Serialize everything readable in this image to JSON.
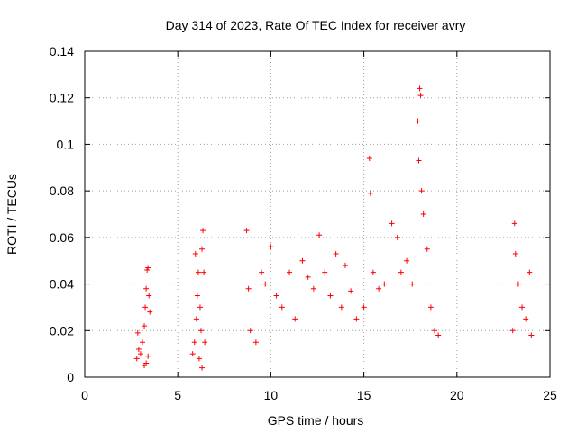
{
  "chart_data": {
    "type": "scatter",
    "title": "Day 314 of 2023, Rate Of TEC Index for receiver avry",
    "xlabel": "GPS time / hours",
    "ylabel": "ROTI / TECUs",
    "xlim": [
      0,
      25
    ],
    "ylim": [
      0,
      0.14
    ],
    "xticks": [
      0,
      5,
      10,
      15,
      20,
      25
    ],
    "yticks": [
      0,
      0.02,
      0.04,
      0.06,
      0.08,
      0.1,
      0.12,
      0.14
    ],
    "xtick_labels": [
      "0",
      "5",
      "10",
      "15",
      "20",
      "25"
    ],
    "ytick_labels": [
      "0",
      "0.02",
      "0.04",
      "0.06",
      "0.08",
      "0.1",
      "0.12",
      "0.14"
    ],
    "grid": true,
    "marker": "+",
    "color": "#ff0000",
    "series": [
      {
        "points": [
          [
            2.8,
            0.008
          ],
          [
            2.9,
            0.012
          ],
          [
            2.85,
            0.019
          ],
          [
            3.0,
            0.01
          ],
          [
            3.1,
            0.015
          ],
          [
            3.2,
            0.022
          ],
          [
            3.25,
            0.03
          ],
          [
            3.3,
            0.038
          ],
          [
            3.35,
            0.046
          ],
          [
            3.4,
            0.047
          ],
          [
            3.45,
            0.035
          ],
          [
            3.5,
            0.028
          ],
          [
            3.3,
            0.006
          ],
          [
            3.4,
            0.009
          ],
          [
            3.2,
            0.005
          ],
          [
            5.8,
            0.01
          ],
          [
            5.9,
            0.015
          ],
          [
            6.0,
            0.025
          ],
          [
            6.05,
            0.035
          ],
          [
            6.1,
            0.045
          ],
          [
            5.95,
            0.053
          ],
          [
            6.2,
            0.03
          ],
          [
            6.3,
            0.055
          ],
          [
            6.35,
            0.063
          ],
          [
            6.4,
            0.045
          ],
          [
            6.25,
            0.02
          ],
          [
            6.15,
            0.008
          ],
          [
            6.3,
            0.004
          ],
          [
            6.45,
            0.015
          ],
          [
            8.7,
            0.063
          ],
          [
            8.8,
            0.038
          ],
          [
            8.9,
            0.02
          ],
          [
            9.2,
            0.015
          ],
          [
            9.5,
            0.045
          ],
          [
            9.7,
            0.04
          ],
          [
            10.0,
            0.056
          ],
          [
            10.3,
            0.035
          ],
          [
            10.6,
            0.03
          ],
          [
            11.0,
            0.045
          ],
          [
            11.3,
            0.025
          ],
          [
            11.7,
            0.05
          ],
          [
            12.0,
            0.043
          ],
          [
            12.3,
            0.038
          ],
          [
            12.6,
            0.061
          ],
          [
            12.9,
            0.045
          ],
          [
            13.2,
            0.035
          ],
          [
            13.5,
            0.053
          ],
          [
            13.8,
            0.03
          ],
          [
            14.0,
            0.048
          ],
          [
            14.3,
            0.037
          ],
          [
            14.6,
            0.025
          ],
          [
            15.0,
            0.03
          ],
          [
            15.3,
            0.094
          ],
          [
            15.35,
            0.079
          ],
          [
            15.5,
            0.045
          ],
          [
            15.8,
            0.038
          ],
          [
            16.1,
            0.04
          ],
          [
            16.5,
            0.066
          ],
          [
            16.8,
            0.06
          ],
          [
            17.0,
            0.045
          ],
          [
            17.3,
            0.05
          ],
          [
            17.6,
            0.04
          ],
          [
            17.9,
            0.11
          ],
          [
            17.95,
            0.093
          ],
          [
            18.0,
            0.124
          ],
          [
            18.05,
            0.121
          ],
          [
            18.1,
            0.08
          ],
          [
            18.2,
            0.07
          ],
          [
            18.4,
            0.055
          ],
          [
            18.6,
            0.03
          ],
          [
            18.8,
            0.02
          ],
          [
            19.0,
            0.018
          ],
          [
            23.0,
            0.02
          ],
          [
            23.1,
            0.066
          ],
          [
            23.15,
            0.053
          ],
          [
            23.3,
            0.04
          ],
          [
            23.5,
            0.03
          ],
          [
            23.7,
            0.025
          ],
          [
            23.9,
            0.045
          ],
          [
            24.0,
            0.018
          ]
        ]
      }
    ]
  }
}
